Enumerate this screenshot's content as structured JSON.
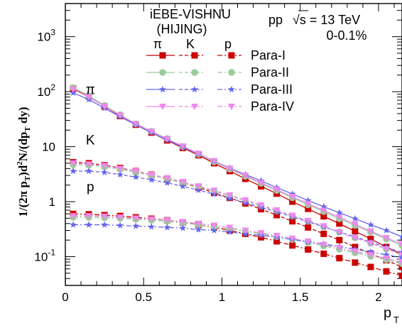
{
  "chart_data": {
    "type": "line",
    "title_lines": [
      "iEBE-VISHNU",
      "(HIJING)"
    ],
    "system_label": "pp",
    "energy_label": "√s = 13 TeV",
    "centrality_label": "0-0.1%",
    "xlabel": "p",
    "xlabel_sub": "T",
    "ylabel": "1/(2π p_T)d²N/(dp_T dy)",
    "xlim": [
      0,
      2.15
    ],
    "ylim": [
      0.03,
      4000
    ],
    "yscale": "log",
    "x_ticks": [
      "0",
      "0.5",
      "1",
      "1.5",
      "2"
    ],
    "y_ticks": [
      {
        "value": 0.1,
        "mantissa": "10",
        "exp": "-1"
      },
      {
        "value": 1,
        "mantissa": "1",
        "exp": ""
      },
      {
        "value": 10,
        "mantissa": "10",
        "exp": ""
      },
      {
        "value": 100,
        "mantissa": "10",
        "exp": "2"
      },
      {
        "value": 1000,
        "mantissa": "10",
        "exp": "3"
      }
    ],
    "particle_labels": [
      {
        "text": "π",
        "x": 0.16,
        "y": 90
      },
      {
        "text": "K",
        "x": 0.16,
        "y": 11
      },
      {
        "text": "p",
        "x": 0.16,
        "y": 1.55
      }
    ],
    "legend": {
      "placement": "top-right",
      "column_headers": [
        "π",
        "K",
        "p"
      ],
      "entries": [
        "Para-I",
        "Para-II",
        "Para-III",
        "Para-IV"
      ]
    },
    "styles": [
      {
        "name": "Para-I",
        "color": "#cc0000",
        "marker": "square"
      },
      {
        "name": "Para-II",
        "color": "#99cc99",
        "marker": "circle"
      },
      {
        "name": "Para-III",
        "color": "#6666ee",
        "marker": "star"
      },
      {
        "name": "Para-IV",
        "color": "#ee88ee",
        "marker": "triangle-down"
      }
    ],
    "x": [
      0.05,
      0.15,
      0.25,
      0.35,
      0.45,
      0.55,
      0.65,
      0.75,
      0.85,
      0.95,
      1.05,
      1.15,
      1.25,
      1.35,
      1.45,
      1.55,
      1.65,
      1.75,
      1.85,
      1.95,
      2.05,
      2.15
    ],
    "series": [
      {
        "particle": "pi",
        "style": 0,
        "dash": "solid",
        "values": [
          115,
          82,
          54,
          36,
          25,
          18,
          13,
          9.5,
          7.0,
          5.0,
          3.6,
          2.6,
          1.9,
          1.4,
          1.0,
          0.74,
          0.54,
          0.4,
          0.29,
          0.21,
          0.15,
          0.11
        ]
      },
      {
        "particle": "pi",
        "style": 1,
        "dash": "solid",
        "values": [
          118,
          84,
          56,
          38,
          26,
          19,
          14,
          10.0,
          7.3,
          5.3,
          3.9,
          2.9,
          2.15,
          1.6,
          1.18,
          0.88,
          0.66,
          0.49,
          0.37,
          0.28,
          0.21,
          0.16
        ]
      },
      {
        "particle": "pi",
        "style": 2,
        "dash": "solid",
        "values": [
          95,
          72,
          50,
          35,
          25,
          18,
          13.2,
          9.9,
          7.4,
          5.5,
          4.1,
          3.1,
          2.4,
          1.8,
          1.38,
          1.05,
          0.81,
          0.63,
          0.49,
          0.38,
          0.3,
          0.23
        ]
      },
      {
        "particle": "pi",
        "style": 3,
        "dash": "solid",
        "values": [
          110,
          80,
          54,
          37,
          26,
          19,
          13.8,
          10.2,
          7.5,
          5.5,
          4.0,
          3.0,
          2.2,
          1.65,
          1.23,
          0.92,
          0.69,
          0.52,
          0.39,
          0.29,
          0.22,
          0.17
        ]
      },
      {
        "particle": "K",
        "style": 0,
        "dash": "dashed",
        "values": [
          5.2,
          5.0,
          4.6,
          4.1,
          3.6,
          3.1,
          2.6,
          2.2,
          1.8,
          1.45,
          1.17,
          0.93,
          0.73,
          0.57,
          0.44,
          0.34,
          0.26,
          0.2,
          0.15,
          0.114,
          0.086,
          0.065
        ]
      },
      {
        "particle": "K",
        "style": 1,
        "dash": "dashed",
        "values": [
          4.7,
          4.6,
          4.3,
          3.9,
          3.4,
          3.0,
          2.6,
          2.2,
          1.85,
          1.55,
          1.28,
          1.04,
          0.84,
          0.68,
          0.55,
          0.44,
          0.35,
          0.28,
          0.22,
          0.175,
          0.138,
          0.109
        ]
      },
      {
        "particle": "K",
        "style": 2,
        "dash": "dashed",
        "values": [
          3.6,
          3.6,
          3.4,
          3.1,
          2.8,
          2.5,
          2.2,
          1.9,
          1.62,
          1.37,
          1.15,
          0.96,
          0.79,
          0.65,
          0.53,
          0.43,
          0.35,
          0.28,
          0.23,
          0.184,
          0.148,
          0.119
        ]
      },
      {
        "particle": "K",
        "style": 3,
        "dash": "dashed",
        "values": [
          5.0,
          4.8,
          4.5,
          4.0,
          3.6,
          3.1,
          2.7,
          2.3,
          1.92,
          1.6,
          1.32,
          1.07,
          0.87,
          0.7,
          0.56,
          0.45,
          0.36,
          0.28,
          0.22,
          0.175,
          0.137,
          0.107
        ]
      },
      {
        "particle": "p",
        "style": 0,
        "dash": "dashdot",
        "values": [
          0.6,
          0.59,
          0.57,
          0.55,
          0.52,
          0.49,
          0.46,
          0.42,
          0.38,
          0.34,
          0.3,
          0.26,
          0.225,
          0.19,
          0.16,
          0.135,
          0.113,
          0.094,
          0.078,
          0.065,
          0.054,
          0.045
        ]
      },
      {
        "particle": "p",
        "style": 1,
        "dash": "dashdot",
        "values": [
          0.52,
          0.52,
          0.51,
          0.5,
          0.48,
          0.46,
          0.44,
          0.41,
          0.38,
          0.35,
          0.32,
          0.29,
          0.26,
          0.23,
          0.205,
          0.18,
          0.157,
          0.137,
          0.118,
          0.102,
          0.088,
          0.075
        ]
      },
      {
        "particle": "p",
        "style": 2,
        "dash": "dashdot",
        "values": [
          0.38,
          0.38,
          0.38,
          0.37,
          0.36,
          0.35,
          0.34,
          0.33,
          0.31,
          0.3,
          0.28,
          0.26,
          0.245,
          0.225,
          0.205,
          0.187,
          0.17,
          0.153,
          0.137,
          0.122,
          0.108,
          0.096
        ]
      },
      {
        "particle": "p",
        "style": 3,
        "dash": "dashdot",
        "values": [
          0.55,
          0.55,
          0.54,
          0.52,
          0.5,
          0.48,
          0.46,
          0.43,
          0.4,
          0.37,
          0.34,
          0.3,
          0.27,
          0.24,
          0.215,
          0.19,
          0.165,
          0.145,
          0.125,
          0.108,
          0.093,
          0.08
        ]
      }
    ]
  }
}
